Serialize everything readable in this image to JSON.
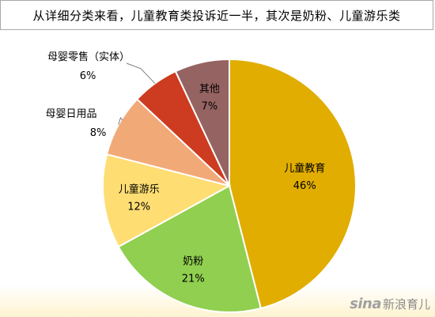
{
  "chart_data": {
    "type": "pie",
    "title": "从详细分类来看，儿童教育类投诉近一半，其次是奶粉、儿童游乐类",
    "slices": [
      {
        "label": "儿童教育",
        "value": 46,
        "value_label": "46%",
        "color": "#e1ad00"
      },
      {
        "label": "奶粉",
        "value": 21,
        "value_label": "21%",
        "color": "#90cf4f"
      },
      {
        "label": "儿童游乐",
        "value": 12,
        "value_label": "12%",
        "color": "#fedd73"
      },
      {
        "label": "母婴日用品",
        "value": 8,
        "value_label": "8%",
        "color": "#f2a978"
      },
      {
        "label": "母婴零售（实体）",
        "value": 6,
        "value_label": "6%",
        "color": "#cd3c20"
      },
      {
        "label": "其他",
        "value": 7,
        "value_label": "7%",
        "color": "#956462"
      }
    ]
  },
  "watermark": {
    "brand": "sina",
    "brand_cn": "新浪育儿"
  }
}
